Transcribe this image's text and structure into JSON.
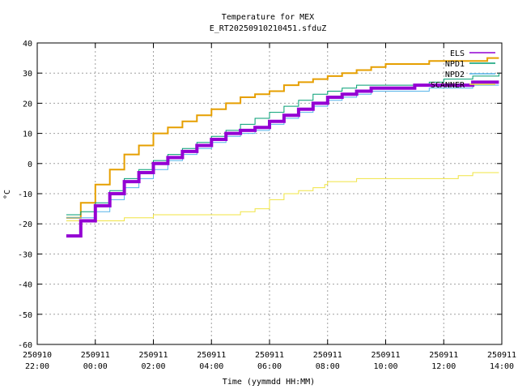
{
  "chart_data": {
    "type": "line",
    "title": "Temperature for MEX",
    "subtitle": "E_RT20250910210451.sfduZ",
    "xlabel": "Time (yymmdd HH:MM)",
    "ylabel": "°C",
    "ylim": [
      -60,
      40
    ],
    "xlim": [
      -2,
      14
    ],
    "grid": true,
    "legend_position": "top-right",
    "yticks": [
      -60,
      -50,
      -40,
      -30,
      -20,
      -10,
      0,
      10,
      20,
      30,
      40
    ],
    "xticks": [
      {
        "x": -2,
        "line1": "250910",
        "line2": "22:00"
      },
      {
        "x": 0,
        "line1": "250911",
        "line2": "00:00"
      },
      {
        "x": 2,
        "line1": "250911",
        "line2": "02:00"
      },
      {
        "x": 4,
        "line1": "250911",
        "line2": "04:00"
      },
      {
        "x": 6,
        "line1": "250911",
        "line2": "06:00"
      },
      {
        "x": 8,
        "line1": "250911",
        "line2": "08:00"
      },
      {
        "x": 10,
        "line1": "250911",
        "line2": "10:00"
      },
      {
        "x": 12,
        "line1": "250911",
        "line2": "12:00"
      },
      {
        "x": 14,
        "line1": "250911",
        "line2": "14:00"
      }
    ],
    "series": [
      {
        "name": "ELS",
        "color": "#9400d3",
        "width": 4,
        "x": [
          -1.0,
          -0.5,
          0.0,
          0.5,
          1.0,
          1.5,
          2.0,
          2.5,
          3.0,
          3.5,
          4.0,
          4.5,
          5.0,
          5.5,
          6.0,
          6.5,
          7.0,
          7.5,
          8.0,
          8.5,
          9.0,
          9.5,
          10.0,
          10.5,
          11.0,
          11.5,
          12.0,
          12.5,
          13.0,
          13.5,
          13.9
        ],
        "y": [
          -24,
          -19,
          -14,
          -10,
          -6,
          -3,
          0,
          2,
          4,
          6,
          8,
          10,
          11,
          12,
          14,
          16,
          18,
          20,
          22,
          23,
          24,
          25,
          25,
          25,
          26,
          26,
          26,
          26,
          27,
          27,
          27
        ]
      },
      {
        "name": "NPD1",
        "color": "#009e73",
        "width": 1,
        "x": [
          -1.0,
          -0.5,
          0.0,
          0.5,
          1.0,
          1.5,
          2.0,
          2.5,
          3.0,
          3.5,
          4.0,
          4.5,
          5.0,
          5.5,
          6.0,
          6.5,
          7.0,
          7.5,
          8.0,
          8.5,
          9.0,
          9.5,
          10.0,
          10.5,
          11.0,
          11.5,
          12.0,
          12.5,
          13.0,
          13.5,
          13.9
        ],
        "y": [
          -17,
          -16,
          -13,
          -9,
          -5,
          -2,
          1,
          3,
          5,
          7,
          9,
          11,
          13,
          15,
          17,
          19,
          21,
          23,
          24,
          25,
          26,
          26,
          26,
          26,
          26,
          27,
          28,
          28,
          29,
          29,
          30
        ]
      },
      {
        "name": "NPD2",
        "color": "#56b4e9",
        "width": 1,
        "x": [
          -1.0,
          -0.5,
          0.0,
          0.5,
          1.0,
          1.5,
          2.0,
          2.5,
          3.0,
          3.5,
          4.0,
          4.5,
          5.0,
          5.5,
          6.0,
          6.5,
          7.0,
          7.5,
          8.0,
          8.5,
          9.0,
          9.5,
          10.0,
          10.5,
          11.0,
          11.5,
          12.0,
          12.5,
          13.0,
          13.5,
          13.9
        ],
        "y": [
          -18,
          -18,
          -16,
          -12,
          -8,
          -5,
          -2,
          1,
          3,
          5,
          7,
          9,
          10,
          11,
          13,
          15,
          17,
          19,
          21,
          22,
          23,
          24,
          24,
          24,
          24,
          25,
          25,
          25,
          26,
          26,
          26
        ]
      },
      {
        "name": "SCANNER",
        "color": "#f0e442",
        "width": 1,
        "x": [
          -1.0,
          -0.5,
          0.0,
          0.5,
          1.0,
          2.0,
          3.0,
          3.5,
          4.0,
          5.0,
          5.5,
          6.0,
          6.5,
          7.0,
          7.5,
          7.9,
          8.0,
          9.0,
          10.0,
          11.0,
          11.5,
          12.0,
          12.5,
          13.0,
          13.9
        ],
        "y": [
          -19,
          -19,
          -19,
          -19,
          -18,
          -17,
          -17,
          -17,
          -17,
          -16,
          -15,
          -12,
          -10,
          -9,
          -8,
          -7,
          -6,
          -5,
          -5,
          -5,
          -5,
          -5,
          -4,
          -3,
          -3
        ]
      },
      {
        "name": "",
        "color": "#e69f00",
        "width": 2,
        "x": [
          -1.0,
          -0.5,
          0.0,
          0.5,
          1.0,
          1.5,
          2.0,
          2.5,
          3.0,
          3.5,
          4.0,
          4.5,
          5.0,
          5.5,
          6.0,
          6.5,
          7.0,
          7.5,
          8.0,
          8.5,
          9.0,
          9.5,
          10.0,
          10.5,
          11.0,
          11.5,
          12.0,
          12.5,
          13.0,
          13.5,
          13.9
        ],
        "y": [
          -18,
          -13,
          -7,
          -2,
          3,
          6,
          10,
          12,
          14,
          16,
          18,
          20,
          22,
          23,
          24,
          26,
          27,
          28,
          29,
          30,
          31,
          32,
          33,
          33,
          33,
          34,
          34,
          34,
          34,
          35,
          35
        ]
      }
    ]
  }
}
